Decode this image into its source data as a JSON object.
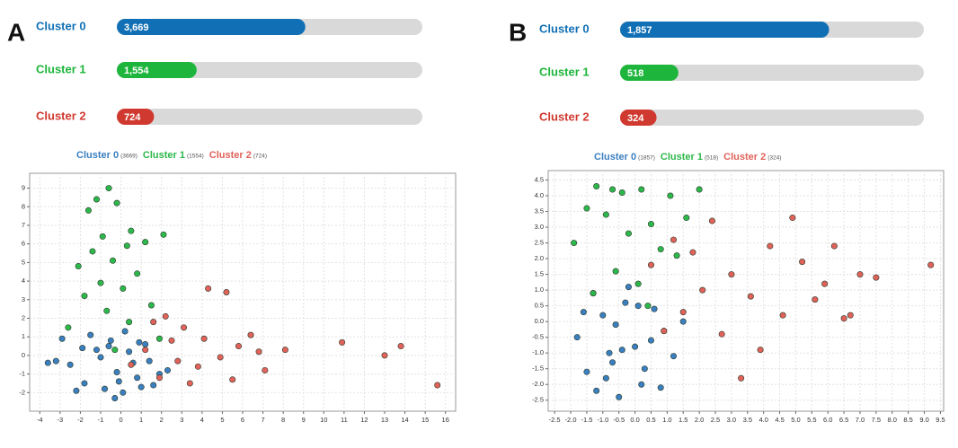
{
  "chart_data": [
    {
      "type": "bar",
      "panel": "A",
      "categories": [
        "Cluster 0",
        "Cluster 1",
        "Cluster 2"
      ],
      "values": [
        3669,
        1554,
        724
      ],
      "value_labels": [
        "3,669",
        "1,554",
        "724"
      ],
      "colors": [
        "#1170b5",
        "#1db53b",
        "#d0392f"
      ],
      "xlim": [
        0,
        5947
      ]
    },
    {
      "type": "scatter",
      "xlim": [
        -4.5,
        16.5
      ],
      "ylim": [
        -3,
        9.8
      ],
      "xticks": [
        -4,
        -3,
        -2,
        -1,
        0,
        1,
        2,
        3,
        4,
        5,
        6,
        7,
        8,
        9,
        10,
        11,
        12,
        13,
        14,
        15,
        16
      ],
      "yticks": [
        -2,
        -1,
        0,
        1,
        2,
        3,
        4,
        5,
        6,
        7,
        8,
        9
      ],
      "grid": true,
      "series": [
        {
          "name": "Cluster 0",
          "count_label": "(3669)",
          "color": "#3b7fc0",
          "x": [
            -2.5,
            -1.8,
            -1.2,
            -0.8,
            -0.5,
            -0.2,
            0.1,
            0.4,
            0.8,
            1.2,
            1.6,
            -3.2,
            -2.9,
            -1.5,
            -0.3,
            0.6,
            1.9,
            -2.2,
            -1,
            0.2,
            1,
            -0.6,
            2.3,
            -3.6,
            -1.9,
            0.9,
            1.4,
            -0.1
          ],
          "values": [
            -0.5,
            -1.5,
            0.3,
            -1.8,
            0.8,
            -0.9,
            -2.0,
            0.2,
            -1.2,
            0.6,
            -1.6,
            -0.3,
            0.9,
            1.1,
            -2.3,
            -0.4,
            -1.0,
            -1.9,
            -0.1,
            1.3,
            -1.7,
            0.5,
            -0.8,
            -0.4,
            0.4,
            0.7,
            -0.3,
            -1.4
          ]
        },
        {
          "name": "Cluster 1",
          "count_label": "(1554)",
          "color": "#2db84b",
          "x": [
            -1.2,
            -0.6,
            -1.6,
            -0.2,
            0.5,
            -0.9,
            -1.4,
            0.3,
            1.2,
            2.1,
            -2.1,
            -0.4,
            0.8,
            -1.0,
            0.1,
            -1.8,
            1.5,
            -0.7,
            0.4,
            -2.6,
            1.9,
            -0.3
          ],
          "values": [
            8.4,
            9.0,
            7.8,
            8.2,
            6.7,
            6.4,
            5.6,
            5.9,
            6.1,
            6.5,
            4.8,
            5.1,
            4.4,
            3.9,
            3.6,
            3.2,
            2.7,
            2.4,
            1.8,
            1.5,
            0.9,
            0.3
          ]
        },
        {
          "name": "Cluster 2",
          "count_label": "(724)",
          "color": "#e0625a",
          "x": [
            0.5,
            1.2,
            1.9,
            2.5,
            3.1,
            3.8,
            4.3,
            5.2,
            5.8,
            6.4,
            7.1,
            8.1,
            10.9,
            13.0,
            13.8,
            15.6,
            2.2,
            3.4,
            4.9,
            1.6,
            2.8,
            4.1,
            5.5,
            6.8
          ],
          "values": [
            -0.5,
            0.3,
            -1.2,
            0.8,
            1.5,
            -0.6,
            3.6,
            3.4,
            0.5,
            1.1,
            -0.8,
            0.3,
            0.7,
            0.0,
            0.5,
            -1.6,
            2.1,
            -1.5,
            -0.1,
            1.8,
            -0.3,
            0.9,
            -1.3,
            0.2
          ]
        }
      ]
    },
    {
      "type": "bar",
      "panel": "B",
      "categories": [
        "Cluster 0",
        "Cluster 1",
        "Cluster 2"
      ],
      "values": [
        1857,
        518,
        324
      ],
      "value_labels": [
        "1,857",
        "518",
        "324"
      ],
      "colors": [
        "#1170b5",
        "#1db53b",
        "#d0392f"
      ],
      "xlim": [
        0,
        2699
      ]
    },
    {
      "type": "scatter",
      "xlim": [
        -2.7,
        9.6
      ],
      "ylim": [
        -2.85,
        4.8
      ],
      "xticks": [
        -2.5,
        {
          "value": -2,
          "label": "-2.0"
        },
        -1.5,
        {
          "value": -1,
          "label": "-1.0"
        },
        -0.5,
        {
          "value": 0,
          "label": "0.0"
        },
        0.5,
        {
          "value": 1,
          "label": "1.0"
        },
        1.5,
        {
          "value": 2,
          "label": "2.0"
        },
        2.5,
        {
          "value": 3,
          "label": "3.0"
        },
        3.5,
        {
          "value": 4,
          "label": "4.0"
        },
        4.5,
        {
          "value": 5,
          "label": "5.0"
        },
        5.5,
        {
          "value": 6,
          "label": "6.0"
        },
        6.5,
        {
          "value": 7,
          "label": "7.0"
        },
        7.5,
        {
          "value": 8,
          "label": "8.0"
        },
        8.5,
        {
          "value": 9,
          "label": "9.0"
        },
        9.5
      ],
      "yticks": [
        -2.5,
        {
          "value": -2,
          "label": "-2.0"
        },
        -1.5,
        {
          "value": -1,
          "label": "-1.0"
        },
        -0.5,
        {
          "value": 0,
          "label": "0.0"
        },
        0.5,
        {
          "value": 1,
          "label": "1.0"
        },
        1.5,
        {
          "value": 2,
          "label": "2.0"
        },
        2.5,
        {
          "value": 3,
          "label": "3.0"
        },
        3.5,
        {
          "value": 4,
          "label": "4.0"
        },
        4.5
      ],
      "grid": true,
      "series": [
        {
          "name": "Cluster 0",
          "count_label": "(1857)",
          "color": "#3b7fc0",
          "x": [
            -1.8,
            -1.5,
            -1.2,
            -1.0,
            -0.8,
            -0.5,
            -0.3,
            0,
            0.3,
            0.6,
            0.9,
            1.2,
            -1.3,
            -0.9,
            -0.6,
            -0.2,
            0.2,
            0.5,
            -1.6,
            -0.7,
            0.1,
            0.8,
            -0.4,
            1.5
          ],
          "values": [
            -0.5,
            -1.6,
            -2.2,
            0.2,
            -1.0,
            -2.4,
            0.6,
            -0.8,
            -1.5,
            0.4,
            -0.3,
            -1.1,
            0.9,
            -1.8,
            -0.1,
            1.1,
            -2.0,
            -0.6,
            0.3,
            -1.3,
            0.5,
            -2.1,
            -0.9,
            0.0
          ]
        },
        {
          "name": "Cluster 1",
          "count_label": "(518)",
          "color": "#2db84b",
          "x": [
            -1.2,
            -0.7,
            -0.4,
            0.2,
            1.1,
            2.0,
            -1.5,
            -0.9,
            0.5,
            1.6,
            -1.9,
            -0.2,
            0.8,
            1.3,
            -0.6,
            0.1,
            -1.3,
            0.4
          ],
          "values": [
            4.3,
            4.2,
            4.1,
            4.2,
            4.0,
            4.2,
            3.6,
            3.4,
            3.1,
            3.3,
            2.5,
            2.8,
            2.3,
            2.1,
            1.6,
            1.2,
            0.9,
            0.5
          ]
        },
        {
          "name": "Cluster 2",
          "count_label": "(324)",
          "color": "#e0625a",
          "x": [
            0.5,
            1.2,
            1.8,
            2.4,
            3.0,
            3.6,
            4.2,
            4.9,
            5.2,
            5.6,
            6.2,
            6.7,
            7.0,
            7.5,
            9.2,
            1.5,
            2.7,
            3.9,
            4.6,
            5.9,
            6.5,
            2.1,
            3.3,
            0.9
          ],
          "values": [
            1.8,
            2.6,
            2.2,
            3.2,
            1.5,
            0.8,
            2.4,
            3.3,
            1.9,
            0.7,
            2.4,
            0.2,
            1.5,
            1.4,
            1.8,
            0.3,
            -0.4,
            -0.9,
            0.2,
            1.2,
            0.1,
            1.0,
            -1.8,
            -0.3
          ]
        }
      ]
    }
  ]
}
